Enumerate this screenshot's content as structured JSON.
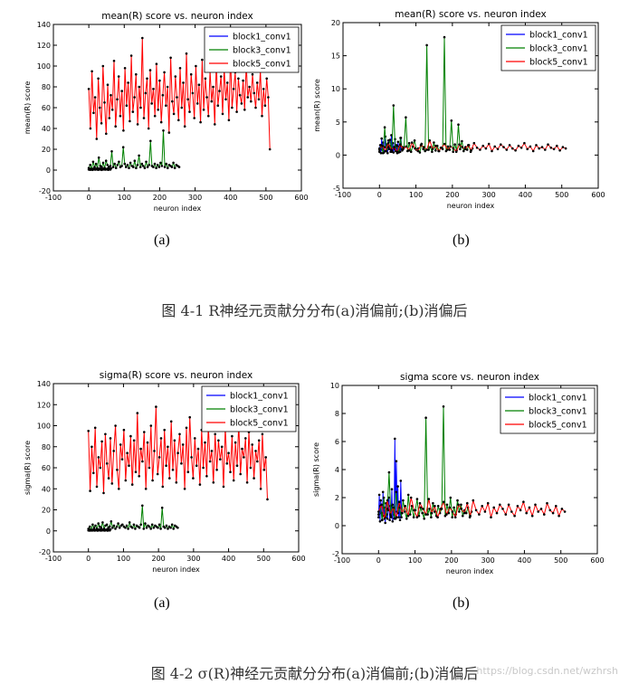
{
  "figures": [
    {
      "caption": "图 4-1 R神经元贡献分分布(a)消偏前;(b)消偏后",
      "sublabels": [
        "(a)",
        "(b)"
      ]
    },
    {
      "caption": "图 4-2 σ(R)神经元贡献分分布(a)消偏前;(b)消偏后",
      "sublabels": [
        "(a)",
        "(b)"
      ]
    }
  ],
  "watermark": "https://blog.csdn.net/wzhrsh",
  "colors": {
    "block1": "#0000ff",
    "block3": "#008000",
    "block5": "#ff0000",
    "marker": "#000000"
  },
  "chart_data": [
    {
      "type": "line",
      "title": "mean(R) score vs. neuron index",
      "xlabel": "neuron index",
      "ylabel": "mean(R) score",
      "xlim": [
        -100,
        600
      ],
      "ylim": [
        -20,
        140
      ],
      "xticks": [
        "-100",
        "0",
        "100",
        "200",
        "300",
        "400",
        "500",
        "600"
      ],
      "yticks": [
        "-20",
        "0",
        "20",
        "40",
        "60",
        "80",
        "100",
        "120",
        "140"
      ],
      "legend_position": "top-right",
      "grid": false,
      "markers": true,
      "series": [
        {
          "name": "block1_conv1",
          "x_range": [
            0,
            63
          ],
          "values": [
            0.5,
            1,
            0.3,
            1.5,
            0.8,
            0.2,
            1.2,
            0.6,
            1.8,
            0.4,
            1,
            0.7,
            1.4,
            0.3,
            0.9,
            1.6,
            0.5,
            1.1,
            0.2,
            0.8,
            1.3,
            0.6,
            1.9,
            0.4,
            1,
            0.7,
            1.5,
            0.3,
            0.9,
            1.2,
            0.5,
            1.7
          ]
        },
        {
          "name": "block3_conv1",
          "x_range": [
            0,
            255
          ],
          "values": [
            2,
            5,
            1,
            8,
            3,
            6,
            2,
            12,
            4,
            3,
            7,
            2,
            9,
            5,
            3,
            4,
            18,
            3,
            6,
            2,
            5,
            8,
            3,
            4,
            22,
            6,
            3,
            5,
            2,
            7,
            4,
            3,
            9,
            2,
            5,
            14,
            3,
            6,
            4,
            2,
            8,
            3,
            5,
            28,
            4,
            3,
            6,
            2,
            5,
            3,
            7,
            4,
            38,
            3,
            6,
            2,
            5,
            4,
            3,
            7,
            2,
            5,
            4,
            3
          ]
        },
        {
          "name": "block5_conv1",
          "x_range": [
            0,
            511
          ],
          "values": [
            78,
            40,
            95,
            55,
            70,
            30,
            88,
            60,
            45,
            100,
            65,
            35,
            82,
            50,
            72,
            58,
            105,
            42,
            68,
            90,
            52,
            76,
            38,
            98,
            62,
            84,
            47,
            110,
            56,
            70,
            92,
            44,
            80,
            60,
            127,
            50,
            74,
            88,
            40,
            96,
            64,
            78,
            52,
            102,
            58,
            86,
            46,
            72,
            94,
            62,
            80,
            36,
            108,
            66,
            54,
            90,
            70,
            48,
            98,
            60,
            84,
            42,
            112,
            68,
            56,
            92,
            74,
            50,
            100,
            64,
            82,
            46,
            106,
            58,
            88,
            70,
            52,
            96,
            66,
            80,
            44,
            104,
            62,
            76,
            90,
            54,
            98,
            68,
            84,
            48,
            110,
            60,
            78,
            94,
            56,
            88,
            72,
            64,
            86,
            58,
            102,
            70,
            80,
            66,
            92,
            74,
            60,
            84,
            68,
            96,
            52,
            78,
            62,
            88,
            70,
            20
          ]
        }
      ]
    },
    {
      "type": "line",
      "title": "mean(R) score vs. neuron index",
      "xlabel": "neuron index",
      "ylabel": "mean(R) score",
      "xlim": [
        -100,
        600
      ],
      "ylim": [
        -5,
        20
      ],
      "xticks": [
        "-100",
        "0",
        "100",
        "200",
        "300",
        "400",
        "500",
        "600"
      ],
      "yticks": [
        "-5",
        "0",
        "5",
        "10",
        "15",
        "20"
      ],
      "legend_position": "top-right",
      "grid": false,
      "markers": true,
      "series": [
        {
          "name": "block1_conv1",
          "x_range": [
            0,
            63
          ],
          "values": [
            0.5,
            1.5,
            0.3,
            2.5,
            0.8,
            1.9,
            0.4,
            1.2,
            2.8,
            0.6,
            1.6,
            0.3,
            2.2,
            0.9,
            1.4,
            0.5,
            3,
            0.7,
            1.8,
            0.4,
            1.1,
            2.4,
            0.6,
            1.5,
            0.3,
            2,
            0.8,
            1.3,
            0.5,
            2.6,
            0.9,
            1.2
          ]
        },
        {
          "name": "block3_conv1",
          "x_range": [
            0,
            255
          ],
          "values": [
            0.8,
            1.5,
            0.3,
            4.2,
            0.6,
            1.2,
            2.3,
            0.5,
            7.5,
            0.9,
            1.4,
            0.4,
            2.6,
            0.7,
            1.1,
            5.7,
            0.6,
            1.8,
            0.5,
            1.3,
            2.2,
            0.8,
            1.0,
            0.4,
            1.7,
            0.9,
            0.6,
            16.6,
            0.8,
            1.2,
            0.5,
            1.9,
            0.7,
            1.4,
            0.6,
            1.1,
            0.9,
            17.8,
            0.6,
            1.3,
            0.8,
            5.2,
            0.5,
            1.6,
            0.7,
            4.6,
            0.9,
            2.1,
            0.6,
            1.2,
            0.8,
            1.5,
            0.5,
            1.0
          ]
        },
        {
          "name": "block5_conv1",
          "x_range": [
            0,
            511
          ],
          "values": [
            1.0,
            1.4,
            0.6,
            1.8,
            0.8,
            1.2,
            0.5,
            1.6,
            0.9,
            1.3,
            0.7,
            1.9,
            1.0,
            0.6,
            1.5,
            1.2,
            0.8,
            2.2,
            0.9,
            1.4,
            0.6,
            1.1,
            1.7,
            0.8,
            1.3,
            1.0,
            0.5,
            1.6,
            1.2,
            0.9,
            1.5,
            0.7,
            1.8,
            1.1,
            0.8,
            1.4,
            1.0,
            1.7,
            0.6,
            1.3,
            0.9,
            1.6,
            1.2,
            0.8,
            1.5,
            1.0,
            0.7,
            1.4,
            1.1,
            1.8,
            0.9,
            1.3,
            0.6,
            1.5,
            1.0,
            1.2,
            0.8,
            1.6,
            1.1,
            0.9,
            1.4,
            0.7,
            1.2,
            1.0
          ]
        }
      ]
    },
    {
      "type": "line",
      "title": "sigma(R) score vs. neuron index",
      "xlabel": "neuron index",
      "ylabel": "sigma(R) score",
      "xlim": [
        -100,
        600
      ],
      "ylim": [
        -20,
        140
      ],
      "xticks": [
        "-100",
        "0",
        "100",
        "200",
        "300",
        "400",
        "500",
        "600"
      ],
      "yticks": [
        "-20",
        "0",
        "20",
        "40",
        "60",
        "80",
        "100",
        "120",
        "140"
      ],
      "legend_position": "top-right",
      "grid": false,
      "markers": true,
      "series": [
        {
          "name": "block1_conv1",
          "x_range": [
            0,
            63
          ],
          "values": [
            0.4,
            0.9,
            0.2,
            1.3,
            0.6,
            0.3,
            1.1,
            0.5,
            1.5,
            0.3,
            0.8,
            0.6,
            1.2,
            0.2,
            0.7,
            1.4,
            0.4,
            1.0,
            0.3,
            0.7,
            1.2,
            0.5,
            1.6,
            0.3,
            0.9,
            0.6,
            1.3,
            0.2,
            0.8,
            1.1,
            0.4,
            1.5
          ]
        },
        {
          "name": "block3_conv1",
          "x_range": [
            0,
            255
          ],
          "values": [
            2,
            4,
            1,
            6,
            3,
            5,
            2,
            7,
            4,
            3,
            8,
            2,
            5,
            6,
            3,
            4,
            9,
            3,
            5,
            2,
            4,
            7,
            3,
            5,
            6,
            4,
            3,
            5,
            2,
            8,
            4,
            3,
            6,
            2,
            5,
            4,
            3,
            6,
            24,
            2,
            7,
            3,
            5,
            4,
            2,
            6,
            3,
            5,
            4,
            3,
            6,
            2,
            22,
            4,
            3,
            5,
            2,
            4,
            3,
            6,
            2,
            5,
            4,
            3
          ]
        },
        {
          "name": "block5_conv1",
          "x_range": [
            0,
            511
          ],
          "values": [
            95,
            38,
            80,
            55,
            98,
            42,
            70,
            60,
            85,
            36,
            92,
            64,
            50,
            88,
            45,
            76,
            100,
            58,
            40,
            82,
            68,
            96,
            48,
            74,
            62,
            90,
            44,
            86,
            56,
            112,
            52,
            78,
            66,
            94,
            40,
            84,
            60,
            100,
            48,
            76,
            118,
            54,
            70,
            88,
            42,
            96,
            62,
            80,
            50,
            104,
            58,
            86,
            46,
            74,
            92,
            64,
            82,
            40,
            98,
            56,
            108,
            70,
            50,
            88,
            62,
            78,
            44,
            96,
            60,
            84,
            52,
            100,
            66,
            76,
            46,
            92,
            58,
            86,
            68,
            80,
            42,
            98,
            64,
            74,
            56,
            90,
            48,
            84,
            62,
            102,
            54,
            78,
            70,
            88,
            46,
            94,
            60,
            82,
            50,
            76,
            66,
            86,
            40,
            92,
            58,
            70,
            30
          ]
        }
      ]
    },
    {
      "type": "line",
      "title": "sigma score vs. neuron index",
      "xlabel": "neuron index",
      "ylabel": "sigma(R) score",
      "xlim": [
        -100,
        600
      ],
      "ylim": [
        -2,
        10
      ],
      "xticks": [
        "-100",
        "0",
        "100",
        "200",
        "300",
        "400",
        "500",
        "600"
      ],
      "yticks": [
        "-2",
        "0",
        "2",
        "4",
        "6",
        "8",
        "10"
      ],
      "legend_position": "top-right",
      "grid": false,
      "markers": true,
      "series": [
        {
          "name": "block1_conv1",
          "x_range": [
            0,
            63
          ],
          "values": [
            0.6,
            2.2,
            0.3,
            1.8,
            0.9,
            0.4,
            2.4,
            0.7,
            1.3,
            0.2,
            1.6,
            0.8,
            0.5,
            1.1,
            2.0,
            0.4,
            1.4,
            0.6,
            2.6,
            0.3,
            1.2,
            0.8,
            6.2,
            0.5,
            4.6,
            1.0,
            2.8,
            0.6,
            1.5,
            0.4,
            3.2,
            0.9
          ]
        },
        {
          "name": "block3_conv1",
          "x_range": [
            0,
            255
          ],
          "values": [
            0.8,
            1.4,
            0.4,
            2.0,
            0.6,
            1.2,
            3.8,
            0.7,
            1.5,
            0.5,
            2.4,
            0.9,
            1.3,
            0.6,
            1.8,
            1.0,
            0.5,
            2.2,
            0.8,
            1.4,
            0.6,
            1.1,
            1.9,
            0.7,
            1.3,
            0.9,
            0.5,
            7.7,
            0.8,
            1.2,
            0.6,
            1.6,
            1.0,
            0.7,
            1.4,
            0.9,
            1.2,
            8.5,
            0.7,
            1.5,
            0.9,
            2.0,
            0.6,
            1.3,
            0.8,
            1.8,
            1.0,
            1.5,
            0.7,
            1.1,
            0.9,
            1.3,
            0.6,
            1.0
          ]
        },
        {
          "name": "block5_conv1",
          "x_range": [
            0,
            511
          ],
          "values": [
            1.0,
            1.5,
            0.5,
            1.8,
            0.8,
            1.3,
            0.6,
            1.7,
            0.9,
            1.4,
            0.7,
            2.0,
            1.1,
            0.6,
            1.6,
            1.2,
            0.8,
            1.9,
            0.9,
            1.4,
            0.6,
            1.2,
            1.7,
            0.8,
            1.3,
            1.0,
            0.6,
            1.5,
            1.2,
            0.9,
            1.6,
            0.7,
            1.8,
            1.1,
            0.8,
            1.4,
            1.0,
            1.6,
            0.6,
            1.3,
            0.9,
            1.5,
            1.2,
            0.8,
            1.5,
            1.0,
            0.7,
            1.4,
            1.1,
            1.7,
            0.9,
            1.3,
            0.7,
            1.5,
            1.0,
            1.2,
            0.8,
            1.6,
            1.1,
            0.9,
            1.4,
            0.7,
            1.2,
            1.0
          ]
        }
      ]
    }
  ]
}
